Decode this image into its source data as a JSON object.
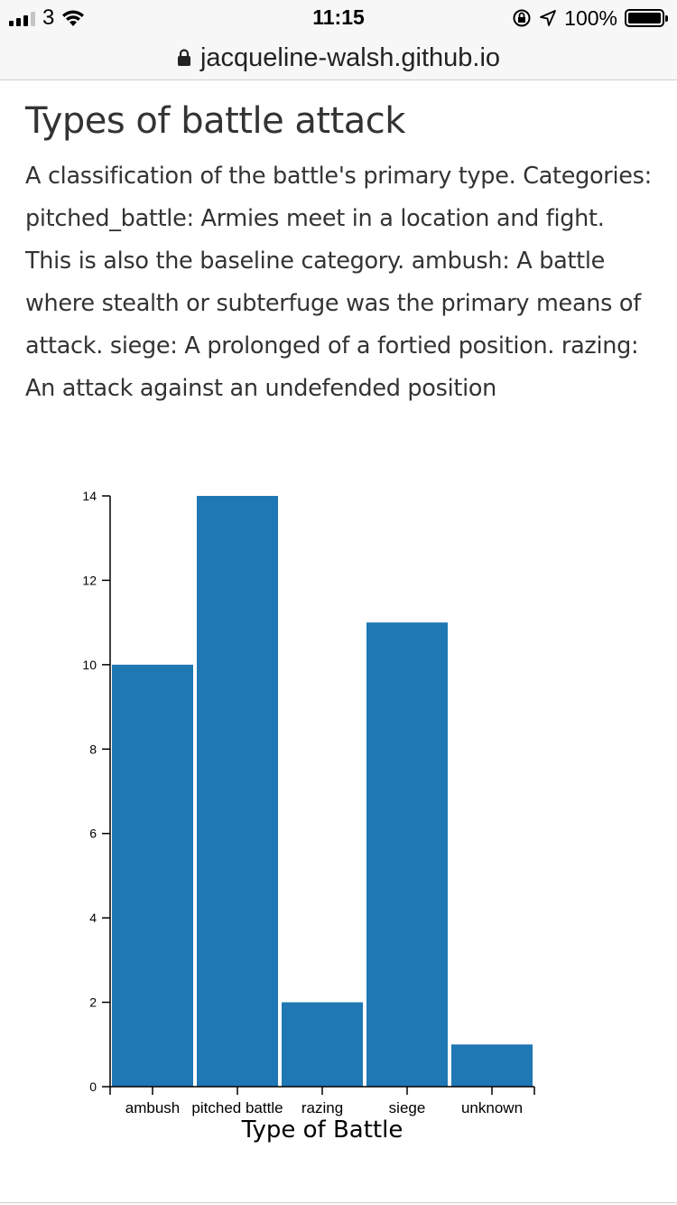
{
  "status_bar": {
    "carrier": "3",
    "time": "11:15",
    "battery": "100%"
  },
  "url_bar": {
    "url": "jacqueline-walsh.github.io"
  },
  "page": {
    "title": "Types of battle attack",
    "description": "A classification of the battle's primary type. Categories: pitched_battle: Armies meet in a location and fight. This is also the baseline category. ambush: A battle where stealth or subterfuge was the primary means of attack. siege: A prolonged of a fortied position. razing: An attack against an undefended position"
  },
  "chart_data": {
    "type": "bar",
    "categories": [
      "ambush",
      "pitched battle",
      "razing",
      "siege",
      "unknown"
    ],
    "values": [
      10,
      14,
      2,
      11,
      1
    ],
    "title": "",
    "xlabel": "Type of Battle",
    "ylabel": "",
    "ylim": [
      0,
      14
    ],
    "yticks": [
      0,
      2,
      4,
      6,
      8,
      10,
      12,
      14
    ],
    "bar_color": "#1f77b4",
    "grid": false
  }
}
